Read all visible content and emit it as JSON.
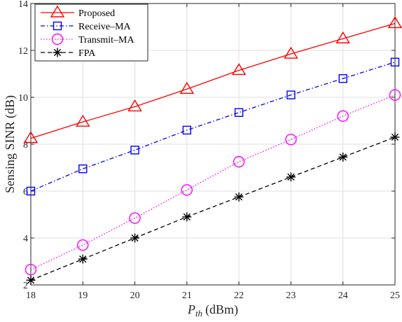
{
  "chart_data": {
    "type": "line",
    "title": "",
    "xlabel": "(dBm)",
    "xlabel_symbol": "P",
    "xlabel_subscript": "th",
    "ylabel": "Sensing SINR (dB)",
    "xlim": [
      18,
      25
    ],
    "ylim": [
      2,
      14
    ],
    "xticks": [
      18,
      19,
      20,
      21,
      22,
      23,
      24,
      25
    ],
    "yticks": [
      2,
      4,
      6,
      8,
      10,
      12,
      14
    ],
    "grid": true,
    "legend_position": "top-left",
    "x": [
      18,
      19,
      20,
      21,
      22,
      23,
      24,
      25
    ],
    "series": [
      {
        "name": "Proposed",
        "values": [
          8.25,
          8.95,
          9.6,
          10.35,
          11.15,
          11.85,
          12.5,
          13.15
        ],
        "color": "#ff0000",
        "marker": "triangle",
        "line": "solid"
      },
      {
        "name": "Receive–MA",
        "values": [
          6.0,
          6.95,
          7.75,
          8.6,
          9.35,
          10.1,
          10.8,
          11.5
        ],
        "color": "#0000ff",
        "marker": "square",
        "line": "dashdot"
      },
      {
        "name": "Transmit–MA",
        "values": [
          2.65,
          3.7,
          4.85,
          6.05,
          7.25,
          8.2,
          9.2,
          10.1
        ],
        "color": "#ff00ff",
        "marker": "circle",
        "line": "dotted"
      },
      {
        "name": "FPA",
        "values": [
          2.2,
          3.1,
          4.0,
          4.9,
          5.75,
          6.6,
          7.45,
          8.3
        ],
        "color": "#000000",
        "marker": "asterisk",
        "line": "dashed"
      }
    ]
  }
}
